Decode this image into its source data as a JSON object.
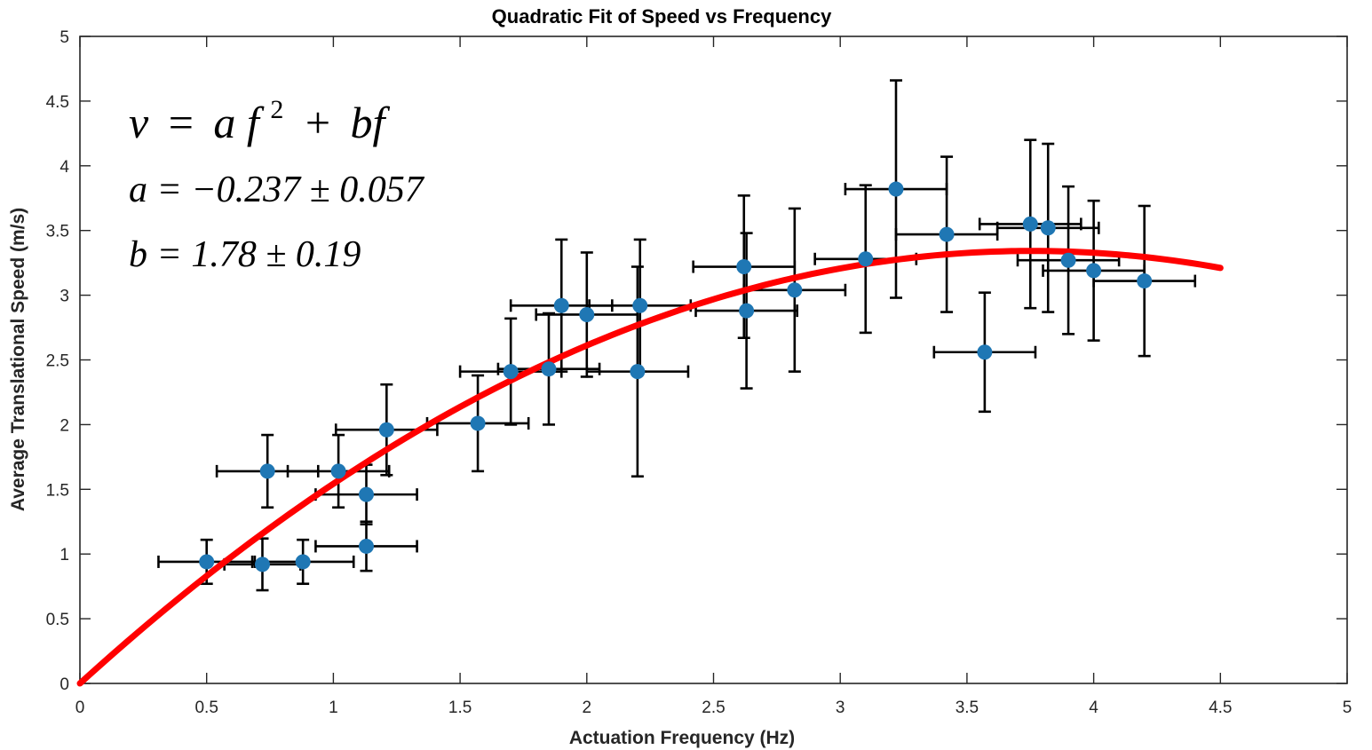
{
  "chart_data": {
    "type": "scatter",
    "title": "Quadratic Fit of Speed vs Frequency",
    "xlabel": "Actuation Frequency (Hz)",
    "ylabel": "Average Translational Speed (m/s)",
    "xlim": [
      0,
      5
    ],
    "ylim": [
      0,
      5
    ],
    "xticks": [
      "0",
      "0.5",
      "1",
      "1.5",
      "2",
      "2.5",
      "3",
      "3.5",
      "4",
      "4.5",
      "5"
    ],
    "yticks": [
      "0",
      "0.5",
      "1",
      "1.5",
      "2",
      "2.5",
      "3",
      "3.5",
      "4",
      "4.5",
      "5"
    ],
    "grid": false,
    "colors": {
      "points": "#1f77b4",
      "error_bars": "#000000",
      "fit": "#ff0000"
    },
    "points": [
      {
        "x": 0.5,
        "y": 0.94,
        "xerr": 0.19,
        "yerr": 0.17
      },
      {
        "x": 0.72,
        "y": 0.92,
        "xerr": 0.15,
        "yerr": 0.2
      },
      {
        "x": 0.74,
        "y": 1.64,
        "xerr": 0.2,
        "yerr": 0.28
      },
      {
        "x": 0.88,
        "y": 0.94,
        "xerr": 0.2,
        "yerr": 0.17
      },
      {
        "x": 1.02,
        "y": 1.64,
        "xerr": 0.2,
        "yerr": 0.28
      },
      {
        "x": 1.13,
        "y": 1.46,
        "xerr": 0.2,
        "yerr": 0.23
      },
      {
        "x": 1.13,
        "y": 1.06,
        "xerr": 0.2,
        "yerr": 0.19
      },
      {
        "x": 1.21,
        "y": 1.96,
        "xerr": 0.2,
        "yerr": 0.35
      },
      {
        "x": 1.57,
        "y": 2.01,
        "xerr": 0.2,
        "yerr": 0.37
      },
      {
        "x": 1.7,
        "y": 2.41,
        "xerr": 0.2,
        "yerr": 0.41
      },
      {
        "x": 1.85,
        "y": 2.43,
        "xerr": 0.2,
        "yerr": 0.43
      },
      {
        "x": 1.9,
        "y": 2.92,
        "xerr": 0.2,
        "yerr": 0.51
      },
      {
        "x": 2.0,
        "y": 2.85,
        "xerr": 0.2,
        "yerr": 0.48
      },
      {
        "x": 2.2,
        "y": 2.41,
        "xerr": 0.2,
        "yerr": 0.81
      },
      {
        "x": 2.21,
        "y": 2.92,
        "xerr": 0.2,
        "yerr": 0.51
      },
      {
        "x": 2.62,
        "y": 3.22,
        "xerr": 0.2,
        "yerr": 0.55
      },
      {
        "x": 2.63,
        "y": 2.88,
        "xerr": 0.2,
        "yerr": 0.6
      },
      {
        "x": 2.82,
        "y": 3.04,
        "xerr": 0.2,
        "yerr": 0.63
      },
      {
        "x": 3.1,
        "y": 3.28,
        "xerr": 0.2,
        "yerr": 0.57
      },
      {
        "x": 3.22,
        "y": 3.82,
        "xerr": 0.2,
        "yerr": 0.84
      },
      {
        "x": 3.42,
        "y": 3.47,
        "xerr": 0.2,
        "yerr": 0.6
      },
      {
        "x": 3.57,
        "y": 2.56,
        "xerr": 0.2,
        "yerr": 0.46
      },
      {
        "x": 3.75,
        "y": 3.55,
        "xerr": 0.2,
        "yerr": 0.65
      },
      {
        "x": 3.82,
        "y": 3.52,
        "xerr": 0.2,
        "yerr": 0.65
      },
      {
        "x": 3.9,
        "y": 3.27,
        "xerr": 0.2,
        "yerr": 0.57
      },
      {
        "x": 4.0,
        "y": 3.19,
        "xerr": 0.2,
        "yerr": 0.54
      },
      {
        "x": 4.2,
        "y": 3.11,
        "xerr": 0.2,
        "yerr": 0.58
      }
    ],
    "fit": {
      "a": -0.237,
      "b": 1.78,
      "x_range": [
        0,
        4.5
      ]
    },
    "annotations": {
      "equation_lhs": "v",
      "equation_eq": "=",
      "equation_a": "a",
      "equation_f": "f",
      "equation_sq": "2",
      "equation_plus": "+",
      "equation_bf": "bf",
      "line_a": "a = −0.237 ± 0.057",
      "line_b": "b = 1.78 ± 0.19"
    }
  }
}
